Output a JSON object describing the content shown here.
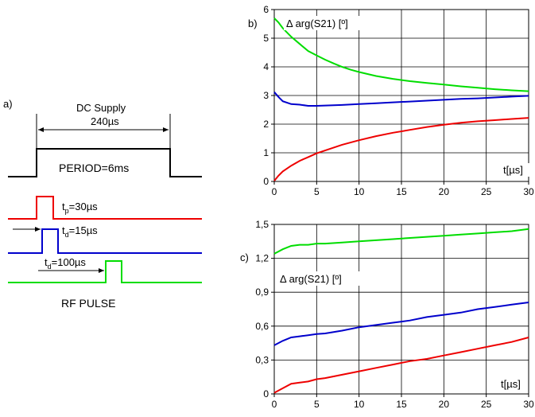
{
  "timing": {
    "panel_label": "a)",
    "dc_label": "DC Supply",
    "dc_duration": "240µs",
    "period_label": "PERIOD=6ms",
    "tp_label": "t",
    "tp_sub": "p",
    "tp_value": "=30µs",
    "td1_label": "t",
    "td1_sub": "d",
    "td1_value": "=15µs",
    "td2_label": "t",
    "td2_sub": "d",
    "td2_value": "=100µs",
    "rf_label": "RF PULSE"
  },
  "chart_data": [
    {
      "type": "line",
      "panel_label": "b)",
      "ylabel": "Δ arg(S21) [º]",
      "xlabel": "t[µs]",
      "xlim": [
        0,
        30
      ],
      "ylim": [
        0,
        6
      ],
      "xticks": [
        "0",
        "5",
        "10",
        "15",
        "20",
        "25",
        "30"
      ],
      "yticks": [
        "0",
        "1",
        "2",
        "3",
        "4",
        "5",
        "6"
      ],
      "grid": true,
      "series": [
        {
          "color": "#00dd00",
          "x": [
            0,
            0.5,
            1,
            2,
            3,
            4,
            5,
            6,
            7,
            8,
            9,
            10,
            12,
            14,
            16,
            18,
            20,
            22,
            24,
            26,
            28,
            30
          ],
          "y": [
            5.7,
            5.55,
            5.35,
            5.05,
            4.8,
            4.55,
            4.4,
            4.25,
            4.12,
            4.0,
            3.9,
            3.82,
            3.68,
            3.58,
            3.5,
            3.44,
            3.38,
            3.32,
            3.27,
            3.22,
            3.18,
            3.15
          ]
        },
        {
          "color": "#0000cc",
          "x": [
            0,
            0.5,
            1,
            2,
            3,
            4,
            5,
            6,
            8,
            10,
            12,
            14,
            16,
            18,
            20,
            22,
            24,
            26,
            28,
            30
          ],
          "y": [
            3.12,
            2.95,
            2.8,
            2.7,
            2.68,
            2.64,
            2.64,
            2.65,
            2.67,
            2.7,
            2.73,
            2.76,
            2.79,
            2.82,
            2.85,
            2.88,
            2.9,
            2.93,
            2.96,
            2.99
          ]
        },
        {
          "color": "#ee0000",
          "x": [
            0,
            0.5,
            1,
            2,
            3,
            4,
            5,
            6,
            8,
            10,
            12,
            14,
            16,
            18,
            20,
            22,
            24,
            26,
            28,
            30
          ],
          "y": [
            0.02,
            0.2,
            0.35,
            0.55,
            0.72,
            0.85,
            0.98,
            1.08,
            1.28,
            1.44,
            1.58,
            1.7,
            1.8,
            1.9,
            1.98,
            2.05,
            2.1,
            2.14,
            2.18,
            2.22
          ]
        }
      ]
    },
    {
      "type": "line",
      "panel_label": "c)",
      "ylabel": "Δ arg(S21) [º]",
      "xlabel": "t[µs]",
      "xlim": [
        0,
        30
      ],
      "ylim": [
        0,
        1.5
      ],
      "xticks": [
        "0",
        "5",
        "10",
        "15",
        "20",
        "25",
        "30"
      ],
      "yticks": [
        "0",
        "0,3",
        "0,6",
        "0,9",
        "1,2",
        "1,5"
      ],
      "grid": true,
      "series": [
        {
          "color": "#00dd00",
          "x": [
            0,
            1,
            2,
            3,
            4,
            5,
            6,
            8,
            10,
            12,
            14,
            16,
            18,
            20,
            22,
            24,
            26,
            28,
            30
          ],
          "y": [
            1.24,
            1.28,
            1.31,
            1.32,
            1.32,
            1.33,
            1.33,
            1.34,
            1.35,
            1.36,
            1.37,
            1.38,
            1.39,
            1.4,
            1.41,
            1.42,
            1.43,
            1.44,
            1.46
          ]
        },
        {
          "color": "#0000cc",
          "x": [
            0,
            1,
            2,
            3,
            4,
            5,
            6,
            8,
            10,
            12,
            14,
            16,
            18,
            20,
            22,
            24,
            26,
            28,
            30
          ],
          "y": [
            0.43,
            0.47,
            0.5,
            0.51,
            0.52,
            0.53,
            0.535,
            0.56,
            0.59,
            0.61,
            0.63,
            0.65,
            0.68,
            0.7,
            0.72,
            0.75,
            0.77,
            0.79,
            0.81
          ]
        },
        {
          "color": "#ee0000",
          "x": [
            0,
            1,
            2,
            3,
            4,
            5,
            6,
            8,
            10,
            12,
            14,
            16,
            18,
            20,
            22,
            24,
            26,
            28,
            30
          ],
          "y": [
            0.01,
            0.05,
            0.09,
            0.1,
            0.11,
            0.13,
            0.14,
            0.17,
            0.2,
            0.23,
            0.26,
            0.29,
            0.31,
            0.34,
            0.37,
            0.4,
            0.43,
            0.46,
            0.5
          ]
        }
      ]
    }
  ]
}
